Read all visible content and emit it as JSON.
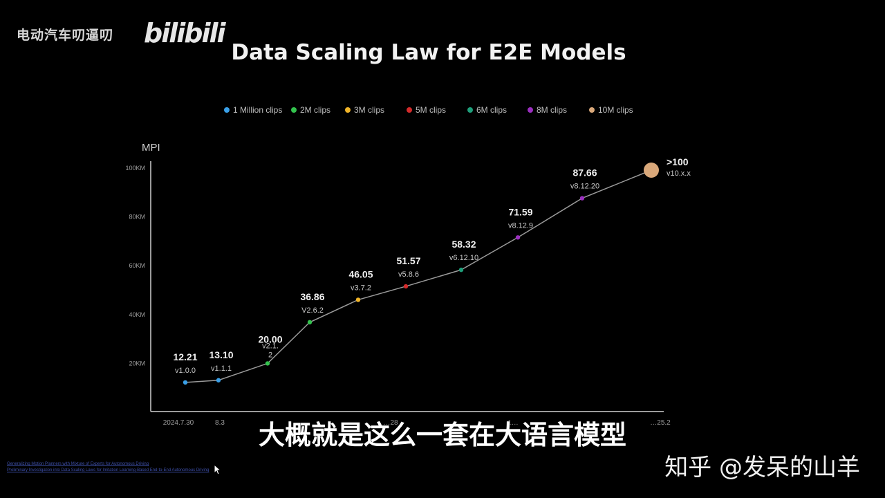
{
  "overlay": {
    "channel_name": "电动汽车叨逼叨",
    "platform_logo": "bilibili",
    "subtitle": "大概就是这么一套在大语言模型",
    "watermark": "知乎 @发呆的山羊"
  },
  "references": [
    "Generalizing Motion Planners with Mixture of Experts for Autonomous Driving",
    "Preliminary Investigation into Data Scaling Laws for Imitation Learning-Based End-to-End Autonomous Driving"
  ],
  "chart_data": {
    "type": "scatter",
    "title": "Data Scaling Law for E2E Models",
    "ylabel": "MPI",
    "ylim": [
      0,
      110
    ],
    "y_ticks": [
      "20KM",
      "40KM",
      "60KM",
      "80KM",
      "100KM"
    ],
    "y_tick_values": [
      20,
      40,
      60,
      80,
      100
    ],
    "x_tick_labels": [
      "2024.7.30",
      "8.3",
      "",
      "",
      "",
      "…28",
      "",
      "1…",
      "",
      "…25.2"
    ],
    "legend_position": "top",
    "legend": [
      {
        "name": "1 Million clips",
        "color": "#3aa0e8"
      },
      {
        "name": "2M clips",
        "color": "#33c24d"
      },
      {
        "name": "3M clips",
        "color": "#f0b429"
      },
      {
        "name": "5M clips",
        "color": "#d42b2b"
      },
      {
        "name": "6M clips",
        "color": "#1f9e7a"
      },
      {
        "name": "8M clips",
        "color": "#9b2fc0"
      },
      {
        "name": "10M clips",
        "color": "#d9a87a"
      }
    ],
    "points": [
      {
        "value": 12.21,
        "label": "12.21",
        "version": "v1.0.0",
        "group": 0
      },
      {
        "value": 13.1,
        "label": "13.10",
        "version": "v1.1.1",
        "group": 0
      },
      {
        "value": 20.0,
        "label": "20.00",
        "version": "v2.1.\n2",
        "group": 1
      },
      {
        "value": 36.86,
        "label": "36.86",
        "version": "V2.6.2",
        "group": 1
      },
      {
        "value": 46.05,
        "label": "46.05",
        "version": "v3.7.2",
        "group": 2
      },
      {
        "value": 51.57,
        "label": "51.57",
        "version": "v5.8.6",
        "group": 3
      },
      {
        "value": 58.32,
        "label": "58.32",
        "version": "v6.12.10",
        "group": 4
      },
      {
        "value": 71.59,
        "label": "71.59",
        "version": "v8.12.9",
        "group": 5
      },
      {
        "value": 87.66,
        "label": "87.66",
        "version": "v8.12.20",
        "group": 5
      },
      {
        "value": 100,
        "label": ">100",
        "version": "v10.x.x",
        "group": 6
      }
    ]
  }
}
